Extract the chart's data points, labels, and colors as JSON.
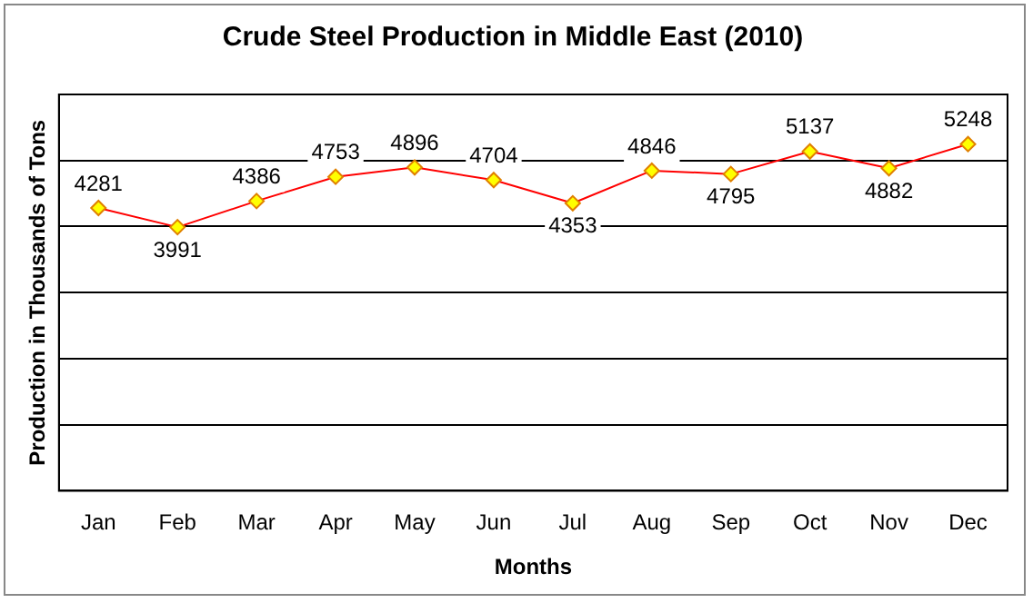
{
  "chart_data": {
    "type": "line",
    "title": "Crude Steel Production in Middle East (2010)",
    "xlabel": "Months",
    "ylabel": "Production in Thousands of Tons",
    "categories": [
      "Jan",
      "Feb",
      "Mar",
      "Apr",
      "May",
      "Jun",
      "Jul",
      "Aug",
      "Sep",
      "Oct",
      "Nov",
      "Dec"
    ],
    "series": [
      {
        "color": "#ff0000",
        "values": [
          4281,
          3991,
          4386,
          4753,
          4896,
          4704,
          4353,
          4846,
          4795,
          5137,
          4882,
          5248
        ]
      }
    ],
    "ylim": [
      0,
      6000
    ],
    "yticks": [
      {
        "value": 0,
        "label": null
      },
      {
        "value": 1000,
        "label": null
      },
      {
        "value": 2000,
        "label": null
      },
      {
        "value": 3000,
        "label": null
      },
      {
        "value": 4000,
        "label": null
      },
      {
        "value": 5000,
        "label": null
      },
      {
        "value": 6000,
        "label": null
      }
    ],
    "tick_labels": "x",
    "grid": "y",
    "legend": false,
    "marker": "diamond",
    "line_style": "solid",
    "data_labels": true
  }
}
